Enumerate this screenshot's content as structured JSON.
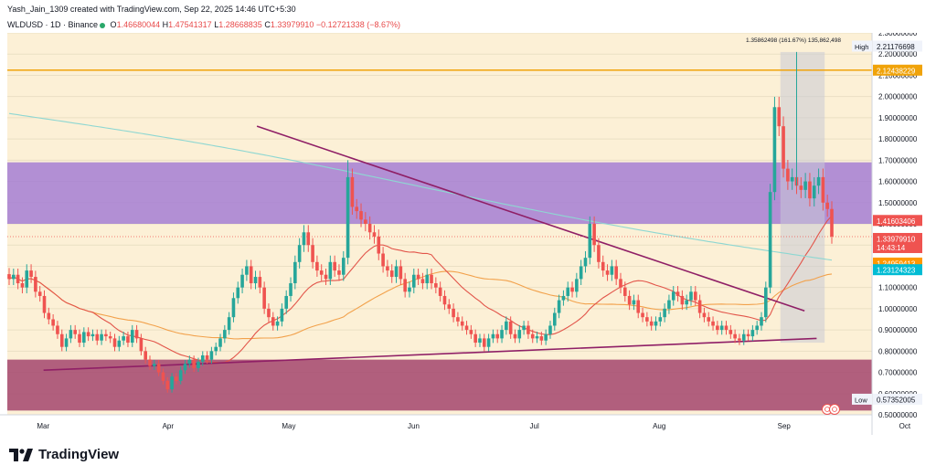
{
  "header": {
    "attribution": "Yash_Jain_1309 created with TradingView.com, Sep 22, 2025 14:46 UTC+5:30",
    "symbol": "WLDUSD · 1D · Binance",
    "o_label": "O",
    "o_value": "1.46680044",
    "h_label": "H",
    "h_value": "1.47541317",
    "l_label": "L",
    "l_value": "1.28668835",
    "c_label": "C",
    "c_value": "1.33979910",
    "change": "−0.12721338 (−8.67%)"
  },
  "footer": {
    "brand": "TradingView"
  },
  "colors": {
    "up": "#26a69a",
    "down": "#ef5350",
    "background": "#fcf0d6",
    "resistance_zone": "#a47ed4",
    "support_zone": "#a94f73",
    "trendline": "#8f1f66",
    "horizontal_line": "#f0a30a"
  },
  "chart_data": {
    "type": "candlestick",
    "currency": "USD",
    "ylim": [
      0.5,
      2.3
    ],
    "y_ticks": [
      "2.30000000",
      "2.20000000",
      "2.10000000",
      "2.00000000",
      "1.90000000",
      "1.80000000",
      "1.70000000",
      "1.60000000",
      "1.50000000",
      "1.40000000",
      "1.30000000",
      "1.20000000",
      "1.10000000",
      "1.00000000",
      "0.90000000",
      "0.80000000",
      "0.70000000",
      "0.60000000",
      "0.50000000"
    ],
    "x_ticks": [
      "Mar",
      "Apr",
      "May",
      "Jun",
      "Jul",
      "Aug",
      "Sep",
      "Oct"
    ],
    "zones": [
      {
        "name": "resistance",
        "from": 1.4,
        "to": 1.69
      },
      {
        "name": "support",
        "from": 0.52,
        "to": 0.76
      }
    ],
    "horizontal_line": {
      "value": 2.12438229,
      "label": "2.12438229"
    },
    "trendlines": [
      {
        "from": [
          "2025-04-24",
          1.86
        ],
        "to": [
          "2025-09-07",
          0.99
        ]
      },
      {
        "from": [
          "2025-03-02",
          0.71
        ],
        "to": [
          "2025-09-10",
          0.86
        ]
      }
    ],
    "measure_box": {
      "from": "2025-09-01",
      "to": "2025-09-12",
      "low": 0.84,
      "high": 2.21
    },
    "measure_label": "1.35862498 (161.67%) 135,862,498",
    "high": {
      "label": "High",
      "value": "2.21176698"
    },
    "low": {
      "label": "Low",
      "value": "0.57352005"
    },
    "price_labels": [
      {
        "value": "1.41603406",
        "color": "#ef5350"
      },
      {
        "value": "1.33979910",
        "countdown": "14:43:14",
        "color": "#ef5350"
      },
      {
        "value": "1.24959413",
        "color": "#ff9800"
      },
      {
        "value": "1.23124323",
        "color": "#00bcd4"
      }
    ],
    "last_price": 1.3398,
    "close_series": [
      1.14,
      1.16,
      1.12,
      1.1,
      1.18,
      1.15,
      1.08,
      1.06,
      0.98,
      0.95,
      0.92,
      0.88,
      0.82,
      0.86,
      0.9,
      0.88,
      0.84,
      0.89,
      0.87,
      0.88,
      0.85,
      0.88,
      0.87,
      0.86,
      0.82,
      0.85,
      0.87,
      0.84,
      0.9,
      0.86,
      0.8,
      0.76,
      0.73,
      0.74,
      0.7,
      0.66,
      0.62,
      0.68,
      0.66,
      0.71,
      0.74,
      0.76,
      0.72,
      0.75,
      0.78,
      0.76,
      0.8,
      0.82,
      0.86,
      0.9,
      0.96,
      1.05,
      1.1,
      1.16,
      1.2,
      1.12,
      1.15,
      1.1,
      1.0,
      0.96,
      0.92,
      0.94,
      1.0,
      1.06,
      1.12,
      1.22,
      1.3,
      1.36,
      1.3,
      1.22,
      1.18,
      1.16,
      1.14,
      1.22,
      1.18,
      1.16,
      1.24,
      1.62,
      1.48,
      1.46,
      1.42,
      1.4,
      1.36,
      1.34,
      1.26,
      1.2,
      1.18,
      1.15,
      1.2,
      1.14,
      1.08,
      1.1,
      1.16,
      1.14,
      1.12,
      1.16,
      1.12,
      1.1,
      1.06,
      1.02,
      1.0,
      0.96,
      0.94,
      0.92,
      0.9,
      0.88,
      0.84,
      0.86,
      0.82,
      0.86,
      0.88,
      0.86,
      0.9,
      0.94,
      0.88,
      0.86,
      0.9,
      0.92,
      0.88,
      0.86,
      0.87,
      0.85,
      0.88,
      0.92,
      0.98,
      1.04,
      1.06,
      1.1,
      1.08,
      1.14,
      1.2,
      1.24,
      1.4,
      1.3,
      1.22,
      1.18,
      1.16,
      1.2,
      1.14,
      1.1,
      1.06,
      1.02,
      1.04,
      0.98,
      0.96,
      0.94,
      0.92,
      0.94,
      0.96,
      1.0,
      1.04,
      1.08,
      1.06,
      1.02,
      1.04,
      1.08,
      1.04,
      0.98,
      0.96,
      0.94,
      0.92,
      0.9,
      0.92,
      0.9,
      0.88,
      0.86,
      0.85,
      0.88,
      0.87,
      0.9,
      0.92,
      0.96,
      1.1,
      1.55,
      1.95,
      1.86,
      1.66,
      1.6,
      1.62,
      1.58,
      1.56,
      1.6,
      1.52,
      1.58,
      1.62,
      1.5,
      1.47,
      1.34
    ],
    "overlays": [
      {
        "color": "#f2a14b",
        "period": 50
      },
      {
        "color": "#e2554a",
        "period": 20
      },
      {
        "color": "#8ed7d2",
        "period": 200
      }
    ]
  }
}
